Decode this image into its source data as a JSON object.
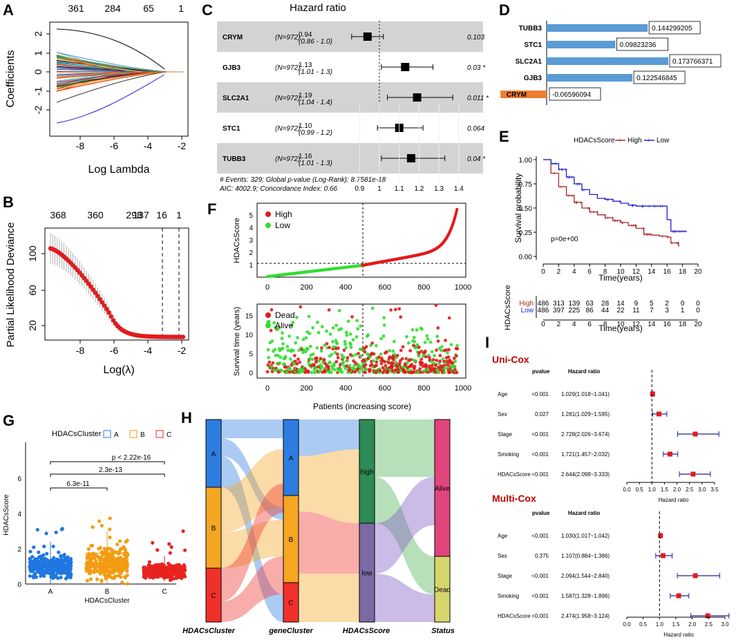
{
  "panels": {
    "A": "A",
    "B": "B",
    "C": "C",
    "D": "D",
    "E": "E",
    "F": "F",
    "G": "G",
    "H": "H",
    "I": "I"
  },
  "panelA": {
    "top_ticks": [
      "361",
      "284",
      "65",
      "1"
    ],
    "x_ticks": [
      "-8",
      "-6",
      "-4",
      "-2"
    ],
    "y_ticks": [
      "2",
      "1",
      "0",
      "-1",
      "-2"
    ],
    "xlabel": "Log Lambda",
    "ylabel": "Coefficients"
  },
  "panelB": {
    "top_ticks": [
      "368",
      "360",
      "298",
      "137",
      "16",
      "1"
    ],
    "x_ticks": [
      "-8",
      "-6",
      "-4",
      "-2"
    ],
    "y_ticks": [
      "100",
      "60",
      "20"
    ],
    "xlabel": "Log(λ)",
    "ylabel": "Partial Likelihood Deviance"
  },
  "panelC": {
    "title": "Hazard ratio",
    "rows": [
      {
        "gene": "CRYM",
        "n": "(N=972)",
        "hr": "0.94",
        "ci": "(0.86 - 1.0)",
        "p": "0.103",
        "sig": "",
        "est": 0.94,
        "lo": 0.86,
        "hi": 1.02
      },
      {
        "gene": "GJB3",
        "n": "(N=972)",
        "hr": "1.13",
        "ci": "(1.01 - 1.3)",
        "p": "0.03",
        "sig": "*",
        "est": 1.13,
        "lo": 1.01,
        "hi": 1.27
      },
      {
        "gene": "SLC2A1",
        "n": "(N=972)",
        "hr": "1.19",
        "ci": "(1.04 - 1.4)",
        "p": "0.011",
        "sig": "*",
        "est": 1.19,
        "lo": 1.04,
        "hi": 1.37
      },
      {
        "gene": "STC1",
        "n": "(N=972)",
        "hr": "1.10",
        "ci": "(0.99 - 1.2)",
        "p": "0.064",
        "sig": "",
        "est": 1.1,
        "lo": 0.99,
        "hi": 1.22
      },
      {
        "gene": "TUBB3",
        "n": "(N=972)",
        "hr": "1.16",
        "ci": "(1.01 - 1.3)",
        "p": "0.04",
        "sig": "*",
        "est": 1.16,
        "lo": 1.01,
        "hi": 1.33
      }
    ],
    "footer1": "# Events: 329; Global p-value (Log-Rank): 8.7581e-18",
    "footer2": "AIC: 4002.9; Concordance Index: 0.66",
    "x_ticks": [
      "0.9",
      "1",
      "1.1",
      "1.2",
      "1.3",
      "1.4"
    ]
  },
  "panelD": {
    "bars": [
      {
        "gene": "TUBB3",
        "value": 0.144299205,
        "label": "0.144299205"
      },
      {
        "gene": "STC1",
        "value": 0.09823236,
        "label": "0.09823236"
      },
      {
        "gene": "SLC2A1",
        "value": 0.173766371,
        "label": "0.173766371"
      },
      {
        "gene": "GJB3",
        "value": 0.122546845,
        "label": "0.122546845"
      },
      {
        "gene": "CRYM",
        "value": -0.06596094,
        "label": "-0.06596094"
      }
    ],
    "pos_color": "#5b9bd5",
    "neg_color": "#ed7d31"
  },
  "panelE": {
    "legend_title": "HDACsScore",
    "legend_high": "High",
    "legend_low": "Low",
    "ylabel": "Survival probability",
    "xlabel": "Time(years)",
    "pvalue": "p=0e+00",
    "x_ticks": [
      "0",
      "2",
      "4",
      "6",
      "8",
      "10",
      "12",
      "14",
      "16",
      "18",
      "20"
    ],
    "y_ticks": [
      "1.00",
      "0.75",
      "0.50",
      "0.25",
      "0.00"
    ],
    "risk_ylabel": "HDACsScore",
    "risk_high_label": "High",
    "risk_low_label": "Low",
    "risk_high": [
      "486",
      "313",
      "139",
      "63",
      "28",
      "14",
      "9",
      "5",
      "2",
      "0",
      "0"
    ],
    "risk_low": [
      "486",
      "397",
      "225",
      "86",
      "44",
      "22",
      "11",
      "7",
      "3",
      "1",
      "0"
    ],
    "risk_xlabel": "Time(years)",
    "high_color": "#a52a2a",
    "low_color": "#1f1fd1"
  },
  "panelF": {
    "top_legend": [
      "High",
      "Low"
    ],
    "top_ylabel": "HDACsScore",
    "top_y_ticks": [
      "5",
      "4",
      "3",
      "2",
      "1"
    ],
    "x_ticks": [
      "0",
      "200",
      "400",
      "600",
      "800",
      "1000"
    ],
    "bottom_legend": [
      "Dead",
      "Alive"
    ],
    "bottom_ylabel": "Survival time (years)",
    "bottom_y_ticks": [
      "15",
      "10",
      "5",
      "0"
    ],
    "xlabel": "Patients (increasing score)"
  },
  "panelG": {
    "legend_title": "HDACsCluster",
    "legend_items": [
      "A",
      "B",
      "C"
    ],
    "comparisons": [
      "p < 2.22e-16",
      "2.3e-13",
      "6.3e-11"
    ],
    "ylabel": "HDACsScore",
    "xlabel": "HDACsCluster",
    "categories": [
      "A",
      "B",
      "C"
    ],
    "y_ticks": [
      "6",
      "4",
      "2",
      "0"
    ],
    "colors": [
      "#1f77e0",
      "#f39c12",
      "#e8231f"
    ]
  },
  "panelH": {
    "axes": [
      "HDACsCluster",
      "geneCluster",
      "HDACsScore",
      "Status"
    ],
    "cluster_labels": [
      "A",
      "B",
      "C"
    ],
    "score_labels": [
      "high",
      "low"
    ],
    "status_labels": [
      "Alive",
      "Dead"
    ]
  },
  "panelI": {
    "uni_title": "Uni-Cox",
    "multi_title": "Multi-Cox",
    "col_pvalue": "pvalue",
    "col_hr": "Hazard ratio",
    "uni_rows": [
      {
        "var": "Age",
        "p": "<0.001",
        "hr": "1.029(1.018~1.041)",
        "est": 1.029,
        "lo": 1.018,
        "hi": 1.041
      },
      {
        "var": "Sex",
        "p": "0.027",
        "hr": "1.281(1.029~1.595)",
        "est": 1.281,
        "lo": 1.029,
        "hi": 1.595
      },
      {
        "var": "Stage",
        "p": "<0.001",
        "hr": "2.728(2.026~3.674)",
        "est": 2.728,
        "lo": 2.026,
        "hi": 3.674
      },
      {
        "var": "Smoking",
        "p": "<0.001",
        "hr": "1.721(1.457~2.032)",
        "est": 1.721,
        "lo": 1.457,
        "hi": 2.032
      },
      {
        "var": "HDACsScore",
        "p": "<0.001",
        "hr": "2.644(2.098~3.333)",
        "est": 2.644,
        "lo": 2.098,
        "hi": 3.333
      }
    ],
    "multi_rows": [
      {
        "var": "Age",
        "p": "<0.001",
        "hr": "1.030(1.017~1.042)",
        "est": 1.03,
        "lo": 1.017,
        "hi": 1.042
      },
      {
        "var": "Sex",
        "p": "0.375",
        "hr": "1.107(0.884~1.386)",
        "est": 1.107,
        "lo": 0.884,
        "hi": 1.386
      },
      {
        "var": "Stage",
        "p": "<0.001",
        "hr": "2.094(1.544~2.840)",
        "est": 2.094,
        "lo": 1.544,
        "hi": 2.84
      },
      {
        "var": "Smoking",
        "p": "<0.001",
        "hr": "1.587(1.328~1.896)",
        "est": 1.587,
        "lo": 1.328,
        "hi": 1.896
      },
      {
        "var": "HDACsScore",
        "p": "<0.001",
        "hr": "2.474(1.958~3.124)",
        "est": 2.474,
        "lo": 1.958,
        "hi": 3.124
      }
    ],
    "uni_x_ticks": [
      "0.0",
      "0.5",
      "1.0",
      "1.5",
      "2.0",
      "2.5",
      "3.0",
      "3.5"
    ],
    "multi_x_ticks": [
      "0.0",
      "0.5",
      "1.0",
      "1.5",
      "2.0",
      "2.5",
      "3.0"
    ],
    "xlabel": "Hazard ratio"
  },
  "chart_data": [
    {
      "type": "line",
      "title": "A: LASSO coefficient paths",
      "xlabel": "Log Lambda",
      "ylabel": "Coefficients",
      "xlim": [
        -9.5,
        -1.8
      ],
      "ylim": [
        -2.5,
        2.5
      ]
    },
    {
      "type": "scatter",
      "title": "B: LASSO cross-validation",
      "xlabel": "Log(λ)",
      "ylabel": "Partial Likelihood Deviance",
      "xlim": [
        -9.5,
        -1.8
      ],
      "ylim": [
        10,
        120
      ],
      "vlines": [
        -3.1,
        -2.1
      ]
    },
    {
      "type": "scatter",
      "title": "C: Hazard ratio forest plot",
      "categories": [
        "CRYM",
        "GJB3",
        "SLC2A1",
        "STC1",
        "TUBB3"
      ],
      "values": [
        0.94,
        1.13,
        1.19,
        1.1,
        1.16
      ],
      "xlim": [
        0.85,
        1.45
      ]
    },
    {
      "type": "bar",
      "title": "D: gene coefficients",
      "categories": [
        "TUBB3",
        "STC1",
        "SLC2A1",
        "GJB3",
        "CRYM"
      ],
      "values": [
        0.144299205,
        0.09823236,
        0.173766371,
        0.122546845,
        -0.06596094
      ]
    },
    {
      "type": "line",
      "title": "E: Kaplan-Meier survival",
      "xlabel": "Time(years)",
      "ylabel": "Survival probability",
      "xlim": [
        0,
        20
      ],
      "ylim": [
        0,
        1
      ],
      "series": [
        {
          "name": "High",
          "x": [
            0,
            1,
            2,
            3,
            4,
            5,
            6,
            7,
            8,
            9,
            10,
            11,
            12,
            13,
            14,
            15,
            16,
            16.5,
            17.5
          ],
          "values": [
            1,
            0.86,
            0.72,
            0.63,
            0.56,
            0.5,
            0.46,
            0.43,
            0.4,
            0.37,
            0.35,
            0.32,
            0.29,
            0.23,
            0.22,
            0.21,
            0.2,
            0.14,
            0.1
          ]
        },
        {
          "name": "Low",
          "x": [
            0,
            1,
            2,
            3,
            4,
            5,
            6,
            7,
            8,
            9,
            10,
            11,
            12,
            13,
            14,
            15,
            16,
            16.5,
            18.5
          ],
          "values": [
            1,
            0.96,
            0.9,
            0.82,
            0.75,
            0.69,
            0.64,
            0.6,
            0.59,
            0.57,
            0.55,
            0.53,
            0.52,
            0.52,
            0.52,
            0.52,
            0.38,
            0.26,
            0.26
          ]
        }
      ]
    },
    {
      "type": "scatter",
      "title": "F: HDACsScore distribution and survival status",
      "xlabel": "Patients (increasing score)",
      "xlim": [
        0,
        1000
      ],
      "ylim_top": [
        0,
        6
      ],
      "ylim_bottom": [
        0,
        18
      ],
      "cutoff": 486
    },
    {
      "type": "bar",
      "title": "G: HDACsScore by HDACsCluster",
      "categories": [
        "A",
        "B",
        "C"
      ],
      "values": [
        0.98,
        1.2,
        0.73
      ],
      "xlabel": "HDACsCluster",
      "ylabel": "HDACsScore",
      "ylim": [
        0,
        7
      ]
    },
    {
      "type": "table",
      "title": "H: Sankey diagram",
      "columns": [
        "HDACsCluster",
        "geneCluster",
        "HDACsScore",
        "Status"
      ]
    },
    {
      "type": "scatter",
      "title": "I: Uni-Cox and Multi-Cox forest plots",
      "xlabel": "Hazard ratio"
    }
  ]
}
